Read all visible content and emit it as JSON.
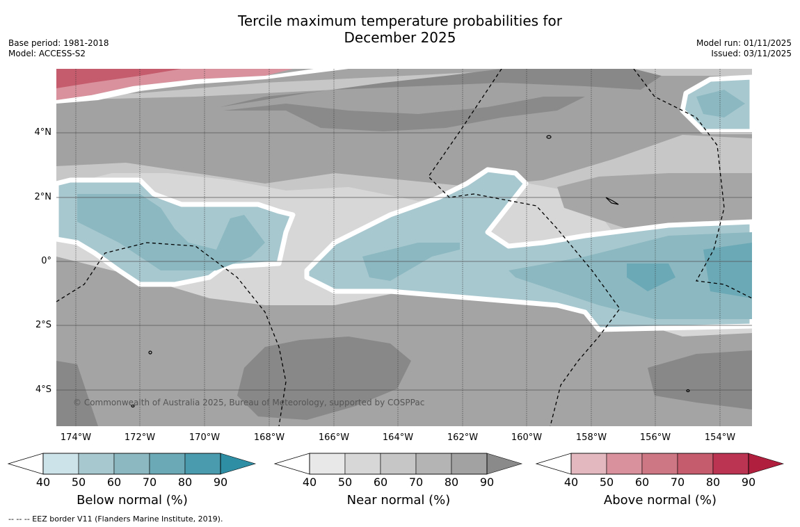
{
  "title_line1": "Tercile maximum temperature probabilities for",
  "title_line2": "December 2025",
  "base_period": "Base period: 1981-2018",
  "model": "Model: ACCESS-S2",
  "model_run": "Model run: 01/11/2025",
  "issued": "Issued: 03/11/2025",
  "copyright": "© Commonwealth of Australia 2025, Bureau of Meteorology, supported by COSPPac",
  "footnote": "--  --  -- EEZ border V11 (Flanders Marine Institute, 2019).",
  "lat_labels": [
    "4°N",
    "2°N",
    "0°",
    "2°S",
    "4°S"
  ],
  "lon_labels": [
    "174°W",
    "172°W",
    "170°W",
    "168°W",
    "166°W",
    "164°W",
    "162°W",
    "160°W",
    "158°W",
    "156°W",
    "154°W"
  ],
  "colorbars": [
    {
      "title": "Below normal (%)",
      "ticks": [
        "40",
        "50",
        "60",
        "70",
        "80",
        "90"
      ],
      "colors": [
        "#cce3ea",
        "#a8c8cf",
        "#8bb8c1",
        "#6ba9b6",
        "#4a9bad",
        "#2e8ea4"
      ]
    },
    {
      "title": "Near normal (%)",
      "ticks": [
        "40",
        "50",
        "60",
        "70",
        "80",
        "90"
      ],
      "colors": [
        "#e8e8e8",
        "#d7d7d7",
        "#c6c6c6",
        "#b4b4b4",
        "#a2a2a2",
        "#8a8a8a"
      ]
    },
    {
      "title": "Above normal (%)",
      "ticks": [
        "40",
        "50",
        "60",
        "70",
        "80",
        "90"
      ],
      "colors": [
        "#e4b8bf",
        "#d9929d",
        "#ce7784",
        "#c55c6d",
        "#bb3552",
        "#b01f3d"
      ]
    }
  ]
}
